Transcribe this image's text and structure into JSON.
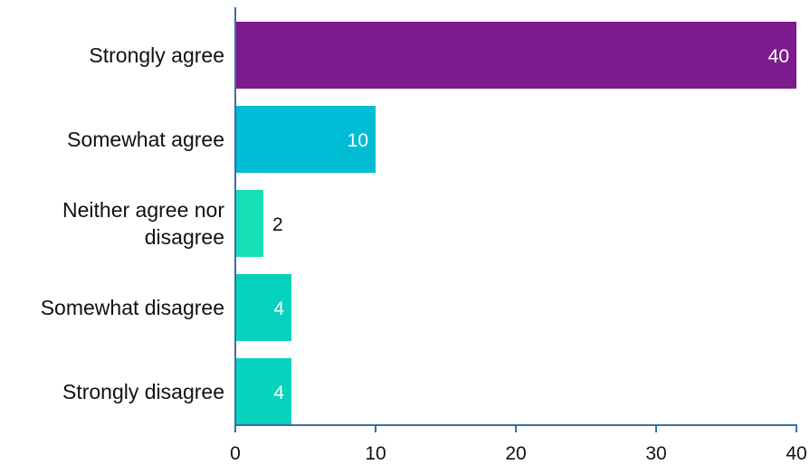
{
  "chart_data": {
    "type": "bar",
    "orientation": "horizontal",
    "categories": [
      [
        "Strongly agree"
      ],
      [
        "Somewhat agree"
      ],
      [
        "Neither agree nor",
        "disagree"
      ],
      [
        "Somewhat disagree"
      ],
      [
        "Strongly disagree"
      ]
    ],
    "values": [
      40,
      10,
      2,
      4,
      4
    ],
    "data_labels": [
      "40",
      "10",
      "2",
      "4",
      "4"
    ],
    "colors": [
      "#7d1b8e",
      "#00bcd4",
      "#14dfb6",
      "#04d2bc",
      "#04d2bc"
    ],
    "xlim": [
      0,
      40
    ],
    "xticks": [
      "0",
      "10",
      "20",
      "30",
      "40"
    ],
    "axis_color": "#3b6ea5",
    "title": "",
    "xlabel": "",
    "ylabel": "",
    "grid": false,
    "legend": "none"
  }
}
